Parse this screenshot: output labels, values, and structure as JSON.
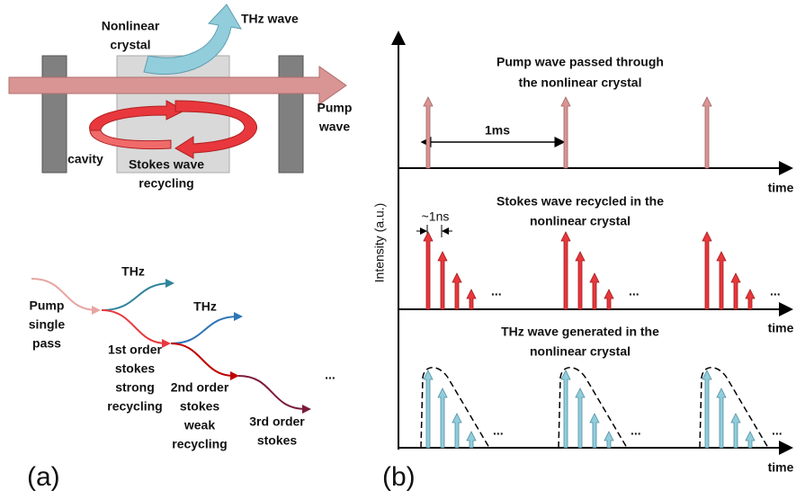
{
  "a": {
    "top": {
      "crystal_label": [
        "Nonlinear",
        "crystal"
      ],
      "thz_label": "THz wave",
      "pump_label": [
        "Pump",
        "wave"
      ],
      "cavity_label": "cavity",
      "stokes_label": [
        "Stokes wave",
        "recycling"
      ]
    },
    "bottom": {
      "thz_labels": [
        "THz",
        "THz"
      ],
      "pump": [
        "Pump",
        "single",
        "pass"
      ],
      "first": [
        "1st order",
        "stokes",
        "strong",
        "recycling"
      ],
      "second": [
        "2nd order",
        "stokes",
        "weak",
        "recycling"
      ],
      "third": [
        "3rd order",
        "stokes"
      ],
      "ellipsis": "..."
    },
    "panel_label": "(a)"
  },
  "b": {
    "y_label": "Intensity (a.u.)",
    "pump": {
      "title": [
        "Pump wave passed through",
        "the nonlinear crystal"
      ],
      "interval": "1ms",
      "x_label": "time"
    },
    "stokes": {
      "title": [
        "Stokes wave recycled in the",
        "nonlinear crystal"
      ],
      "interval": "~1ns",
      "ellipsis": [
        "...",
        "...",
        "..."
      ],
      "x_label": "time"
    },
    "thz": {
      "title": [
        "THz wave generated in the",
        "nonlinear crystal"
      ],
      "ellipsis": [
        "...",
        "...",
        "..."
      ],
      "x_label": "time"
    },
    "panel_label": "(b)"
  }
}
